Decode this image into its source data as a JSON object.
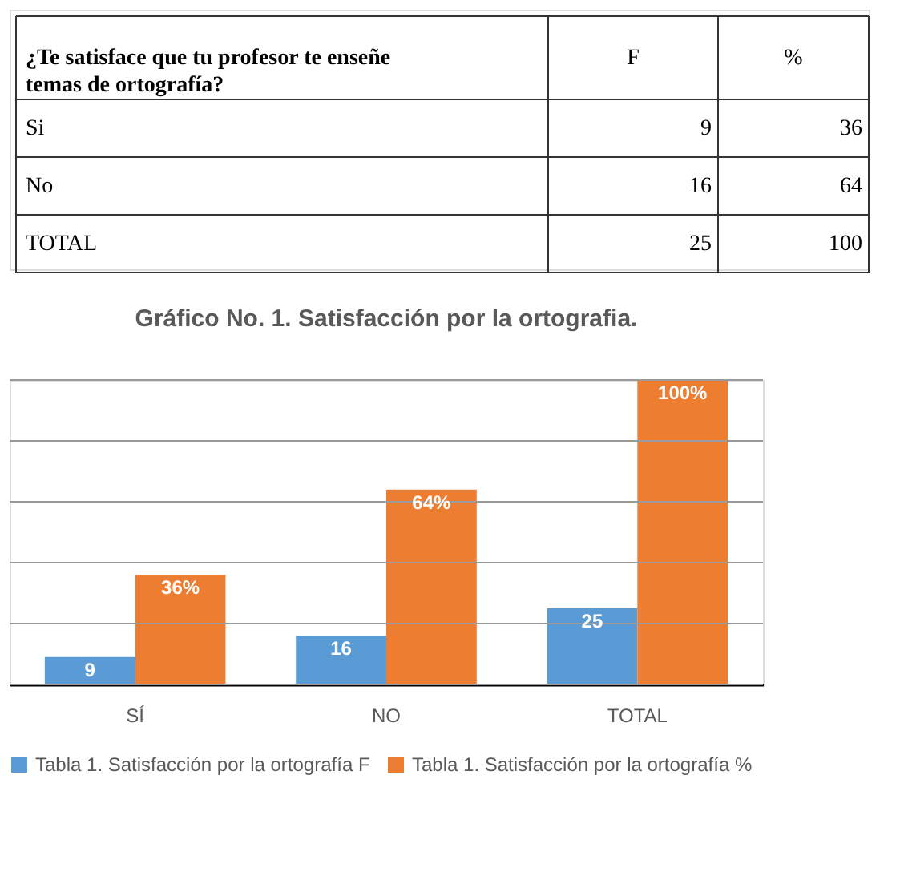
{
  "chart_data": [
    {
      "type": "other",
      "annotations": [
        "¿Te satisface que tu profesor te enseñe temas de ortografía?",
        "F",
        "%",
        "Si",
        "9",
        "36",
        "No",
        "16",
        "64",
        "TOTAL",
        "25",
        "100"
      ]
    },
    {
      "type": "bar",
      "title": "Gráfico No. 1. Satisfacción por la ortografia.",
      "categories": [
        "SÍ",
        "NO",
        "TOTAL"
      ],
      "series": [
        {
          "name": "Tabla 1. Satisfacción por la ortografía F",
          "color": "#5b9bd5",
          "values": [
            9,
            16,
            25
          ],
          "value_labels": [
            "9",
            "16",
            "25"
          ]
        },
        {
          "name": "Tabla 1. Satisfacción por la ortografía %",
          "color": "#ed7d31",
          "values": [
            36,
            64,
            100
          ],
          "value_labels": [
            "36%",
            "64%",
            "100%"
          ]
        }
      ],
      "ylim": [
        0,
        100
      ],
      "yticks": [
        {
          "value": 0,
          "label": null
        },
        {
          "value": 20,
          "label": null
        },
        {
          "value": 40,
          "label": null
        },
        {
          "value": 60,
          "label": null
        },
        {
          "value": 80,
          "label": null
        },
        {
          "value": 100,
          "label": null
        }
      ],
      "grid": "y",
      "legend": "bottom",
      "tick_labels": "x"
    }
  ]
}
